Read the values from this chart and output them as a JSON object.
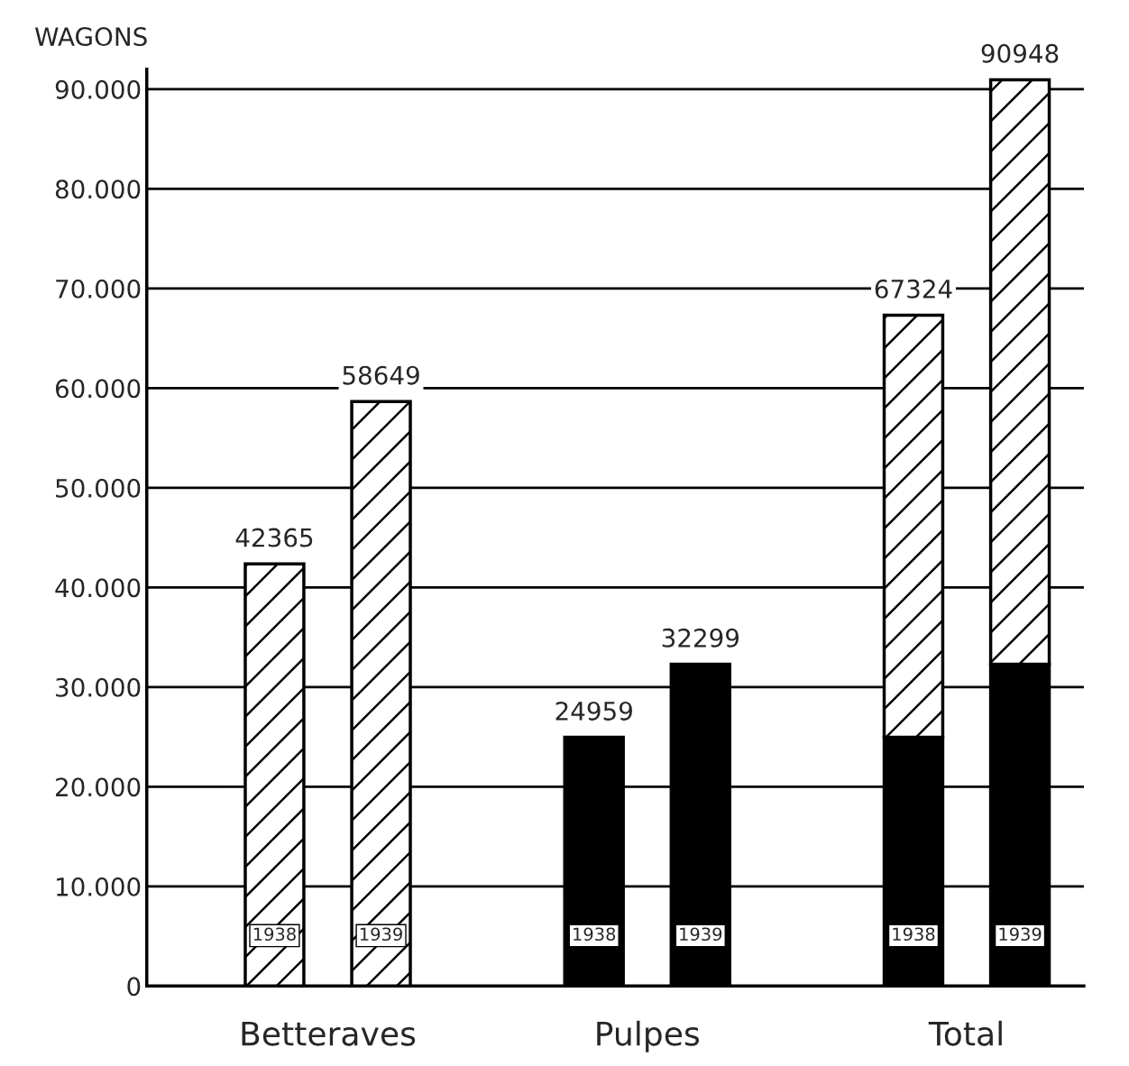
{
  "chart_data": {
    "type": "bar",
    "stacked": true,
    "ylabel": "WAGONS",
    "categories": [
      "1938",
      "1939",
      null,
      "1938",
      "1939",
      null,
      "1938",
      "1939"
    ],
    "series": [
      {
        "color": "#000000",
        "values": [
          null,
          null,
          null,
          24959,
          32299,
          null,
          24959,
          32299
        ]
      },
      {
        "color": "#000000",
        "values": [
          42365,
          58649,
          null,
          null,
          null,
          null,
          42365,
          58649
        ]
      }
    ],
    "totals": [
      "42365",
      "58649",
      null,
      "24959",
      "32299",
      null,
      "67324",
      "90948"
    ],
    "annotations": [
      "Betteraves",
      "Pulpes",
      "Total"
    ],
    "ylim": [
      0,
      92000
    ],
    "yticks": [
      0,
      {
        "value": 10000,
        "label": "10.000"
      },
      {
        "value": 20000,
        "label": "20.000"
      },
      {
        "value": 30000,
        "label": "30.000"
      },
      {
        "value": 40000,
        "label": "40.000"
      },
      {
        "value": 50000,
        "label": "50.000"
      },
      {
        "value": 60000,
        "label": "60.000"
      },
      {
        "value": 70000,
        "label": "70.000"
      },
      {
        "value": 80000,
        "label": "80.000"
      },
      {
        "value": 90000,
        "label": "90.000"
      }
    ],
    "grid": "y"
  }
}
